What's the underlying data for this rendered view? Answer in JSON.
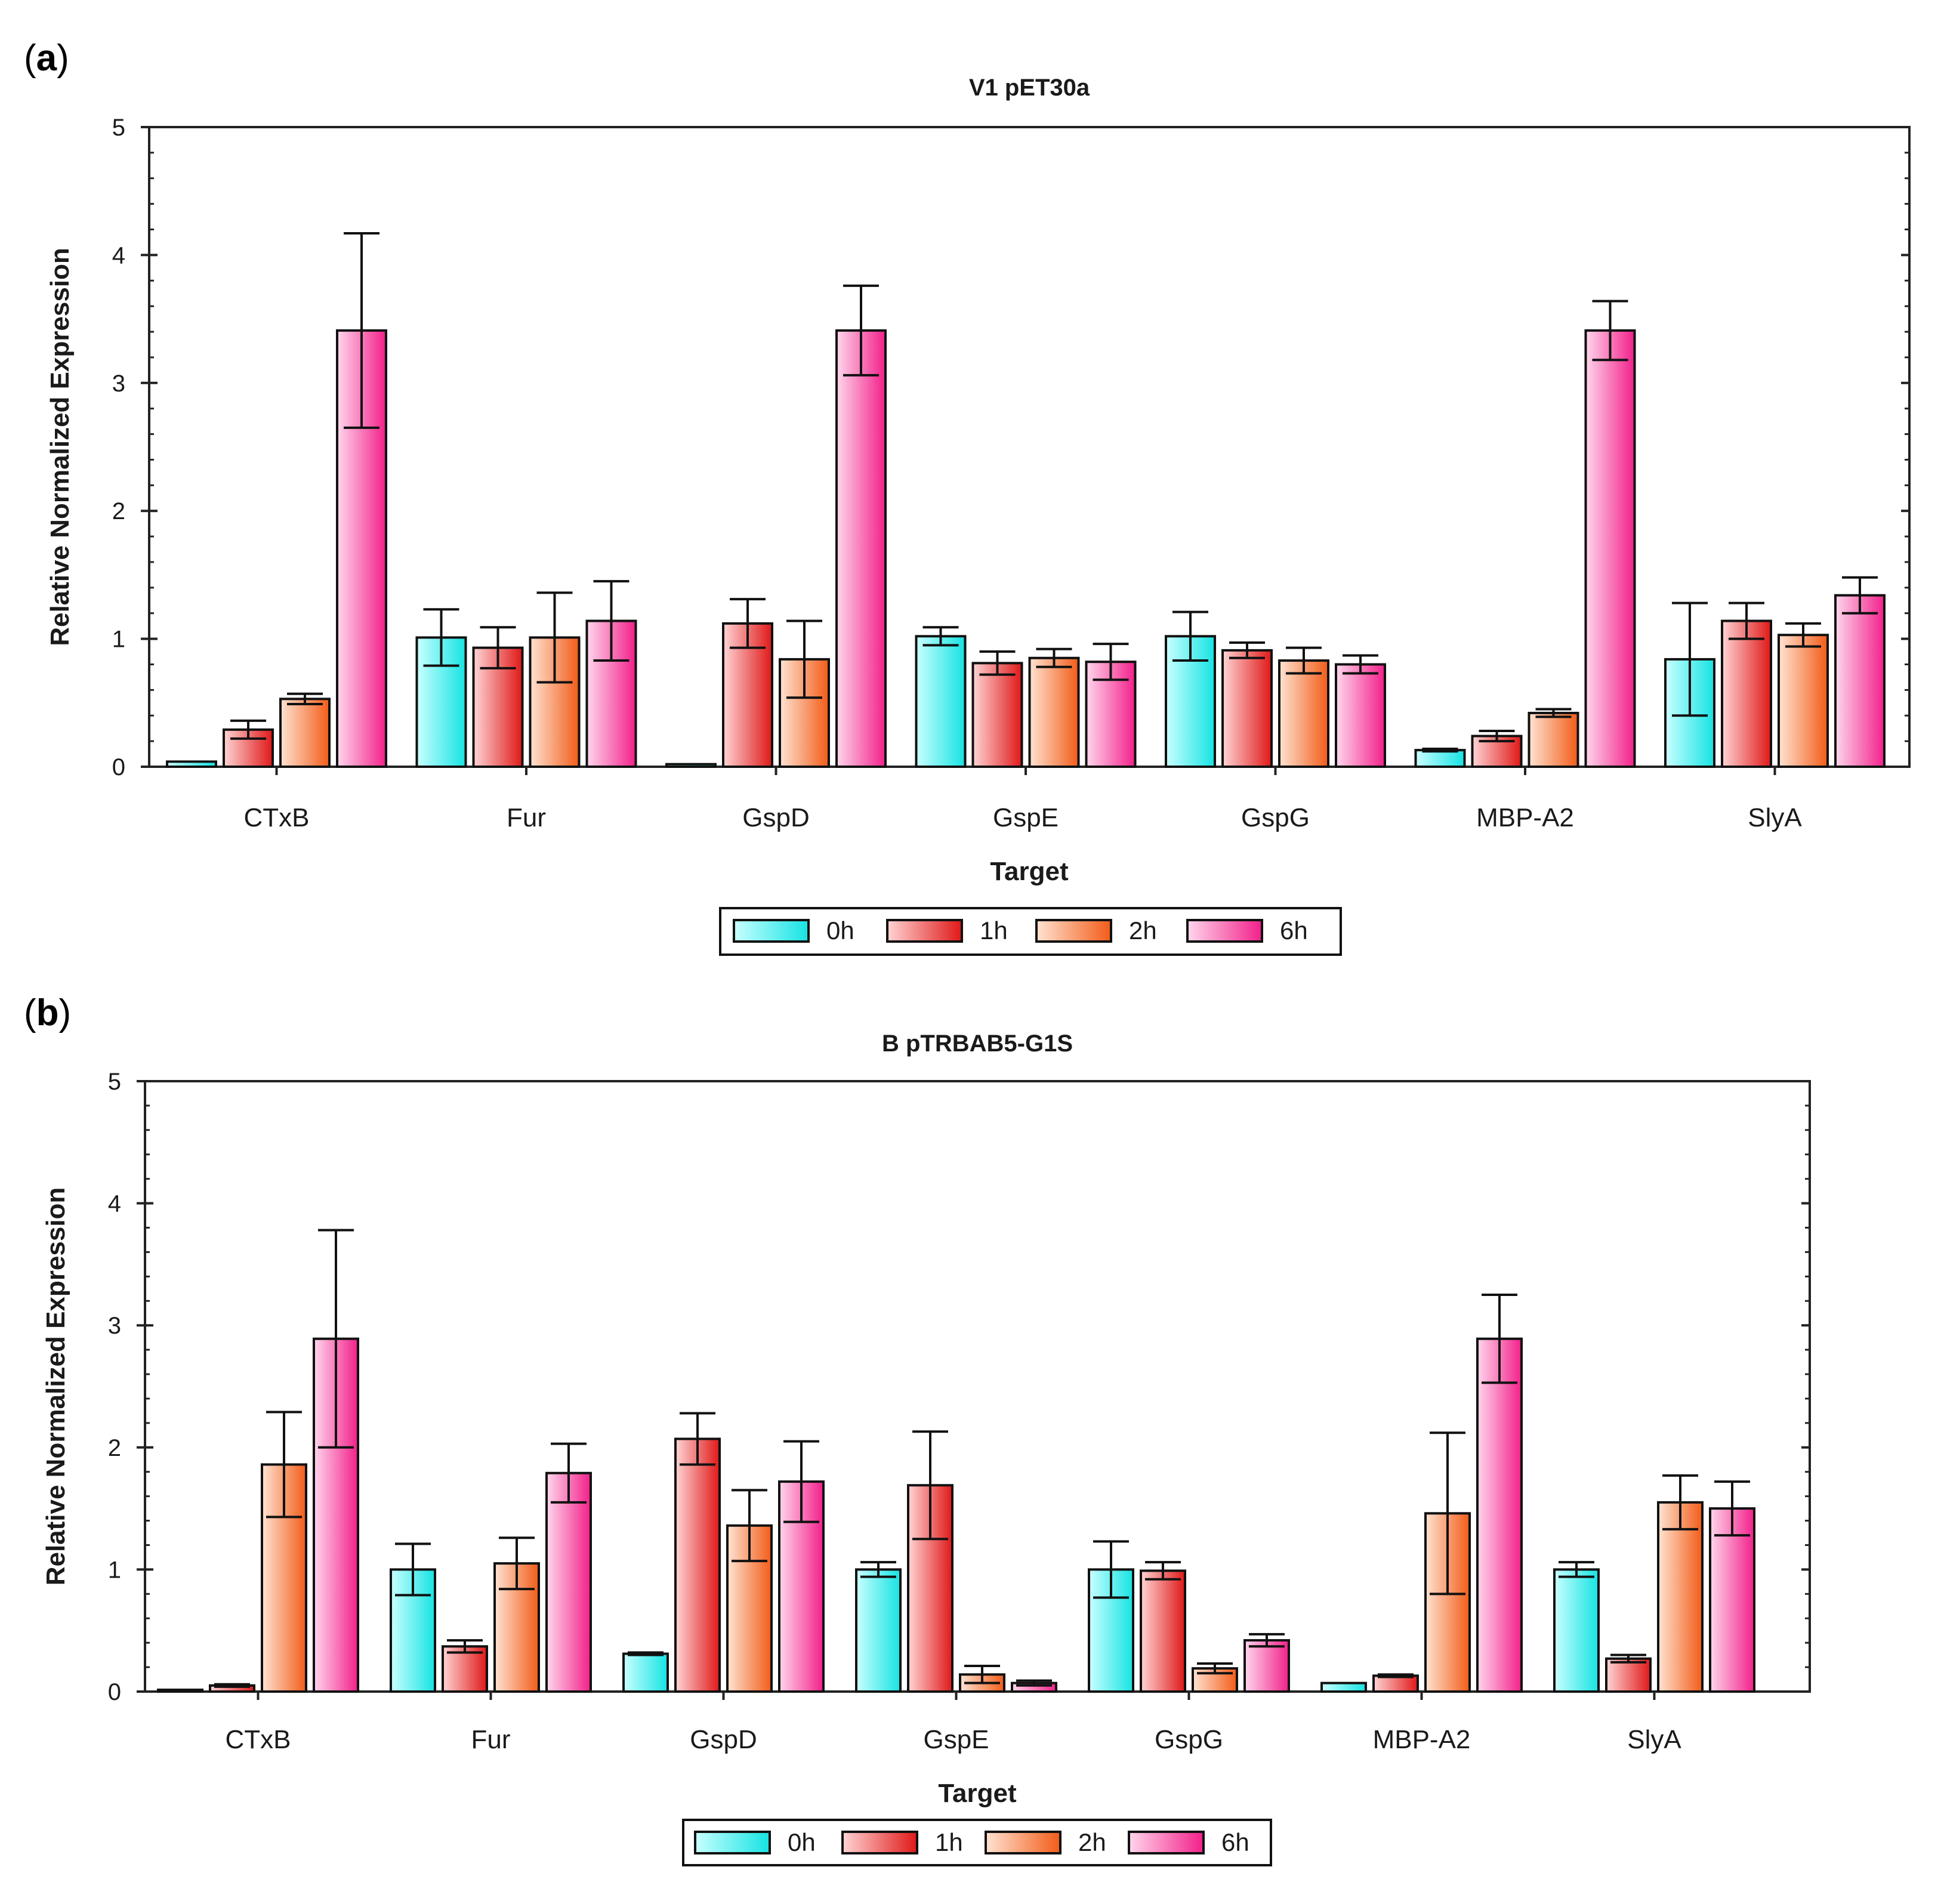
{
  "panels": [
    {
      "letter": "a",
      "chart_index": 0
    },
    {
      "letter": "b",
      "chart_index": 1
    }
  ],
  "series_colors": {
    "0h": {
      "light": "#c9ffff",
      "dark": "#16e3e3"
    },
    "1h": {
      "light": "#ffd4d4",
      "dark": "#e01818"
    },
    "2h": {
      "light": "#ffe3d2",
      "dark": "#f25c18"
    },
    "6h": {
      "light": "#ffd6ec",
      "dark": "#f2208a"
    }
  },
  "chart_data": [
    {
      "type": "bar",
      "title": "V1 pET30a",
      "xlabel": "Target",
      "ylabel": "Relative Normalized Expression",
      "ylim": [
        0,
        5
      ],
      "yticks": [
        0,
        1,
        2,
        3,
        4,
        5
      ],
      "legend_placement": "bottom-center",
      "categories": [
        "CTxB",
        "Fur",
        "GspD",
        "GspE",
        "GspG",
        "MBP-A2",
        "SlyA"
      ],
      "series": [
        {
          "name": "0h",
          "values": [
            0.04,
            1.01,
            0.02,
            1.02,
            1.02,
            0.13,
            0.84
          ],
          "errors": [
            0.0,
            0.22,
            0.0,
            0.07,
            0.19,
            0.01,
            0.44
          ]
        },
        {
          "name": "1h",
          "values": [
            0.29,
            0.93,
            1.12,
            0.81,
            0.91,
            0.24,
            1.14
          ],
          "errors": [
            0.07,
            0.16,
            0.19,
            0.09,
            0.06,
            0.04,
            0.14
          ]
        },
        {
          "name": "2h",
          "values": [
            0.53,
            1.01,
            0.84,
            0.85,
            0.83,
            0.42,
            1.03
          ],
          "errors": [
            0.04,
            0.35,
            0.3,
            0.07,
            0.1,
            0.03,
            0.09
          ]
        },
        {
          "name": "6h",
          "values": [
            3.41,
            1.14,
            3.41,
            0.82,
            0.8,
            3.41,
            1.34
          ],
          "errors": [
            0.76,
            0.31,
            0.35,
            0.14,
            0.07,
            0.23,
            0.14
          ]
        }
      ]
    },
    {
      "type": "bar",
      "title": "B pTRBAB5-G1S",
      "xlabel": "Target",
      "ylabel": "Relative Normalized Expression",
      "ylim": [
        0,
        5
      ],
      "yticks": [
        0,
        1,
        2,
        3,
        4,
        5
      ],
      "legend_placement": "bottom-center",
      "categories": [
        "CTxB",
        "Fur",
        "GspD",
        "GspE",
        "GspG",
        "MBP-A2",
        "SlyA"
      ],
      "series": [
        {
          "name": "0h",
          "values": [
            0.0,
            1.0,
            0.31,
            1.0,
            1.0,
            0.07,
            1.0
          ],
          "errors": [
            0.0,
            0.21,
            0.01,
            0.06,
            0.23,
            0.0,
            0.06
          ]
        },
        {
          "name": "1h",
          "values": [
            0.05,
            0.37,
            2.07,
            1.69,
            0.99,
            0.13,
            0.27
          ],
          "errors": [
            0.01,
            0.05,
            0.21,
            0.44,
            0.07,
            0.01,
            0.03
          ]
        },
        {
          "name": "2h",
          "values": [
            1.86,
            1.05,
            1.36,
            0.14,
            0.19,
            1.46,
            1.55
          ],
          "errors": [
            0.43,
            0.21,
            0.29,
            0.07,
            0.04,
            0.66,
            0.22
          ]
        },
        {
          "name": "6h",
          "values": [
            2.89,
            1.79,
            1.72,
            0.07,
            0.42,
            2.89,
            1.5
          ],
          "errors": [
            0.89,
            0.24,
            0.33,
            0.02,
            0.05,
            0.36,
            0.22
          ]
        }
      ]
    }
  ]
}
